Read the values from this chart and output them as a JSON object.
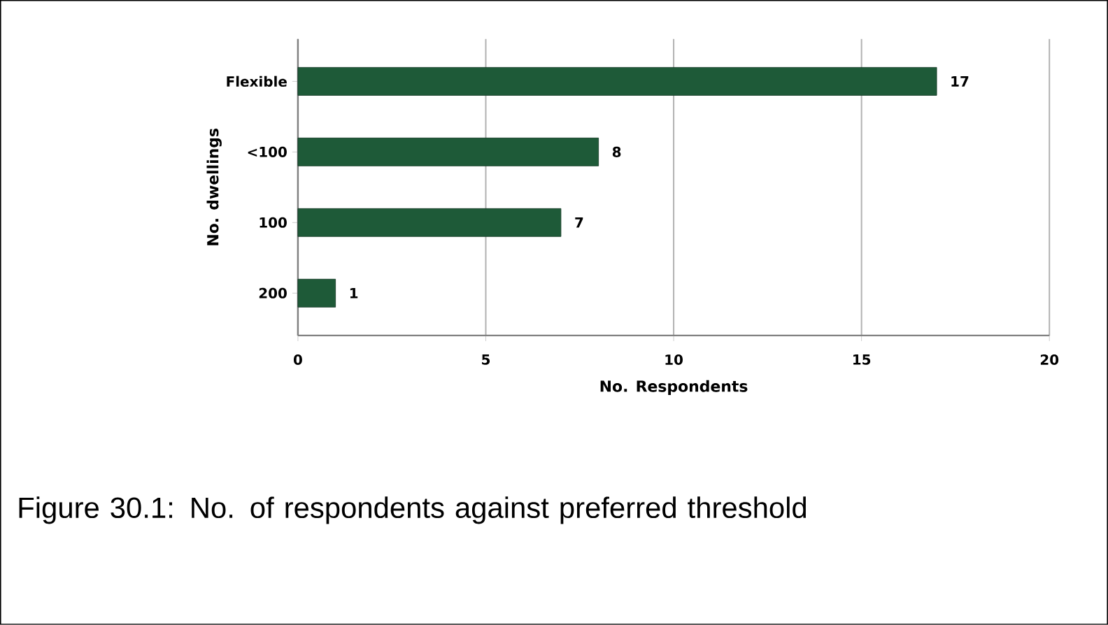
{
  "chart_data": {
    "type": "bar",
    "orientation": "horizontal",
    "xlabel": "No. Respondents",
    "ylabel": "No. dwellings",
    "categories": [
      "Flexible",
      "<100",
      "100",
      "200"
    ],
    "values": [
      17,
      8,
      7,
      1
    ],
    "color": "#1e5a38",
    "xlim": [
      0,
      20
    ],
    "xticks": [
      0,
      5,
      10,
      15,
      20
    ],
    "grid": "x",
    "data_labels": true,
    "annotations": [
      "Figure 30.1: No. of respondents against preferred threshold"
    ]
  }
}
